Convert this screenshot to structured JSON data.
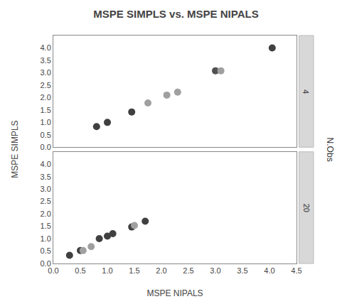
{
  "chart_data": [
    {
      "type": "scatter",
      "title": "MSPE SIMPLS vs. MSPE NIPALS",
      "ylabel": "MSPE SIMPLS",
      "annotations": [
        "4",
        "N.Obs"
      ],
      "x": [
        0.8,
        1.0,
        1.45,
        1.75,
        2.1,
        2.3,
        3.0,
        3.1,
        4.05
      ],
      "values": [
        0.83,
        1.0,
        1.42,
        1.78,
        2.1,
        2.22,
        3.08,
        3.08,
        4.0
      ],
      "colors": [
        "#404040",
        "#404040",
        "#404040",
        "#a0a0a0",
        "#a0a0a0",
        "#a0a0a0",
        "#505050",
        "#a0a0a0",
        "#404040"
      ],
      "xlim": [
        0.0,
        4.5
      ],
      "ylim": [
        0.0,
        4.5
      ],
      "xticks": [
        0,
        0.5,
        1,
        1.5,
        2,
        2.5,
        3,
        3.5,
        4,
        4.5
      ],
      "yticks": [
        {
          "value": 0,
          "label": "0.0"
        },
        0.5,
        {
          "value": 1,
          "label": "1.0"
        },
        1.5,
        {
          "value": 2,
          "label": "2.0"
        },
        2.5,
        {
          "value": 3,
          "label": "3.0"
        },
        3.5,
        {
          "value": 4,
          "label": "4.0"
        }
      ],
      "tick_labels": "y",
      "grid": false
    },
    {
      "type": "scatter",
      "xlabel": "MSPE NIPALS",
      "annotations": [
        "20"
      ],
      "x": [
        0.3,
        0.5,
        0.55,
        0.7,
        0.85,
        1.0,
        1.1,
        1.45,
        1.5,
        1.7
      ],
      "values": [
        0.33,
        0.52,
        0.52,
        0.68,
        1.0,
        1.1,
        1.2,
        1.47,
        1.53,
        1.7
      ],
      "colors": [
        "#404040",
        "#404040",
        "#a0a0a0",
        "#a0a0a0",
        "#404040",
        "#404040",
        "#404040",
        "#404040",
        "#a0a0a0",
        "#404040"
      ],
      "xlim": [
        0.0,
        4.5
      ],
      "ylim": [
        0.0,
        4.5
      ],
      "xticks": [
        {
          "value": 0,
          "label": "0.0"
        },
        0.5,
        {
          "value": 1,
          "label": "1.0"
        },
        1.5,
        {
          "value": 2,
          "label": "2.0"
        },
        2.5,
        {
          "value": 3,
          "label": "3.0"
        },
        3.5,
        {
          "value": 4,
          "label": "4.0"
        },
        4.5
      ],
      "yticks": [
        {
          "value": 0,
          "label": "0.0"
        },
        0.5,
        {
          "value": 1,
          "label": "1.0"
        },
        1.5,
        {
          "value": 2,
          "label": "2.0"
        },
        2.5,
        {
          "value": 3,
          "label": "3.0"
        },
        3.5,
        {
          "value": 4,
          "label": "4.0"
        }
      ],
      "grid": false
    }
  ]
}
